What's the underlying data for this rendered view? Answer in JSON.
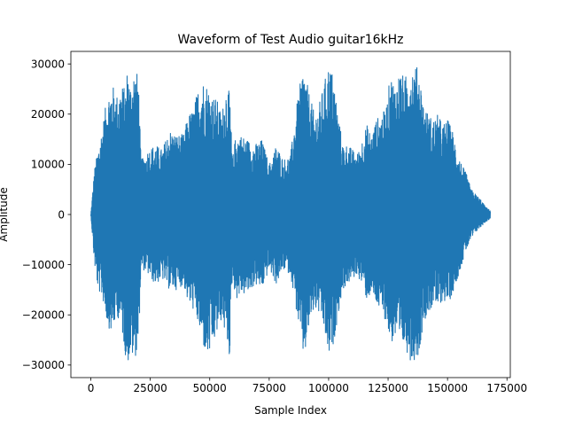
{
  "chart_data": {
    "type": "area",
    "title": "Waveform of Test Audio guitar16kHz",
    "xlabel": "Sample Index",
    "ylabel": "Amplitude",
    "xlim": [
      -8400,
      176400
    ],
    "ylim": [
      -32500,
      32500
    ],
    "grid": false,
    "legend": "none",
    "color": "#1f77b4",
    "x_ticks": [
      {
        "value": 0,
        "label": "0"
      },
      {
        "value": 25000,
        "label": "25000"
      },
      {
        "value": 50000,
        "label": "50000"
      },
      {
        "value": 75000,
        "label": "75000"
      },
      {
        "value": 100000,
        "label": "100000"
      },
      {
        "value": 125000,
        "label": "125000"
      },
      {
        "value": 150000,
        "label": "150000"
      },
      {
        "value": 175000,
        "label": "175000"
      }
    ],
    "y_ticks": [
      {
        "value": -30000,
        "label": "−30000"
      },
      {
        "value": -20000,
        "label": "−20000"
      },
      {
        "value": -10000,
        "label": "−10000"
      },
      {
        "value": 0,
        "label": "0"
      },
      {
        "value": 10000,
        "label": "10000"
      },
      {
        "value": 20000,
        "label": "20000"
      },
      {
        "value": 30000,
        "label": "30000"
      }
    ],
    "envelope": {
      "x": [
        0,
        1500,
        3000,
        5000,
        7000,
        9000,
        11000,
        13000,
        14500,
        15500,
        16500,
        18000,
        20000,
        21000,
        22000,
        24000,
        27000,
        30000,
        33000,
        36000,
        39000,
        41000,
        43000,
        45000,
        47000,
        49000,
        51000,
        53000,
        55000,
        57000,
        58500,
        59500,
        61000,
        63000,
        66000,
        69000,
        72000,
        75000,
        78000,
        81000,
        84000,
        86000,
        88000,
        89500,
        90500,
        92000,
        94000,
        96000,
        98000,
        100000,
        102000,
        104000,
        106000,
        108000,
        110000,
        112000,
        114000,
        116000,
        118000,
        120000,
        122000,
        124000,
        126000,
        128000,
        130000,
        132000,
        134000,
        136000,
        138000,
        140000,
        142000,
        144000,
        146000,
        148000,
        150000,
        152000,
        154000,
        156000,
        158000,
        160000,
        162000,
        164000,
        166000,
        168000
      ],
      "upper": [
        0,
        9000,
        13000,
        18000,
        24000,
        26000,
        24000,
        26000,
        25000,
        30000,
        26000,
        29000,
        28000,
        12000,
        11000,
        13000,
        14000,
        13000,
        17000,
        16000,
        16000,
        20000,
        21000,
        25000,
        27000,
        26000,
        24000,
        23000,
        20000,
        26000,
        24000,
        11000,
        16000,
        16000,
        15000,
        14000,
        15000,
        10000,
        14000,
        11000,
        12000,
        20000,
        26000,
        30000,
        27000,
        24000,
        20000,
        22000,
        26000,
        30000,
        28000,
        20000,
        14000,
        14000,
        13000,
        12000,
        15000,
        18000,
        16000,
        19000,
        20000,
        21000,
        28000,
        26000,
        29000,
        27000,
        30000,
        30000,
        29000,
        22000,
        20000,
        19000,
        20000,
        18000,
        19000,
        17000,
        13000,
        10000,
        8000,
        5000,
        4000,
        3000,
        1500,
        800
      ],
      "lower": [
        0,
        -10000,
        -15000,
        -17000,
        -22000,
        -24000,
        -20000,
        -23000,
        -28000,
        -30000,
        -28000,
        -29000,
        -27000,
        -12000,
        -11000,
        -12000,
        -14000,
        -13000,
        -15000,
        -15000,
        -14000,
        -18000,
        -19000,
        -22000,
        -26000,
        -29000,
        -27000,
        -24000,
        -21000,
        -25000,
        -29000,
        -12000,
        -17000,
        -16000,
        -16000,
        -14000,
        -15000,
        -11000,
        -14000,
        -11000,
        -12000,
        -18000,
        -24000,
        -29000,
        -27000,
        -22000,
        -19000,
        -20000,
        -23000,
        -29000,
        -26000,
        -20000,
        -15000,
        -14000,
        -13000,
        -12000,
        -14000,
        -17000,
        -16000,
        -18000,
        -20000,
        -21000,
        -26000,
        -25000,
        -28000,
        -26000,
        -29000,
        -29000,
        -28000,
        -21000,
        -20000,
        -18000,
        -19000,
        -17000,
        -18000,
        -16000,
        -13000,
        -10000,
        -7000,
        -5000,
        -3500,
        -2500,
        -1500,
        -800
      ]
    }
  }
}
